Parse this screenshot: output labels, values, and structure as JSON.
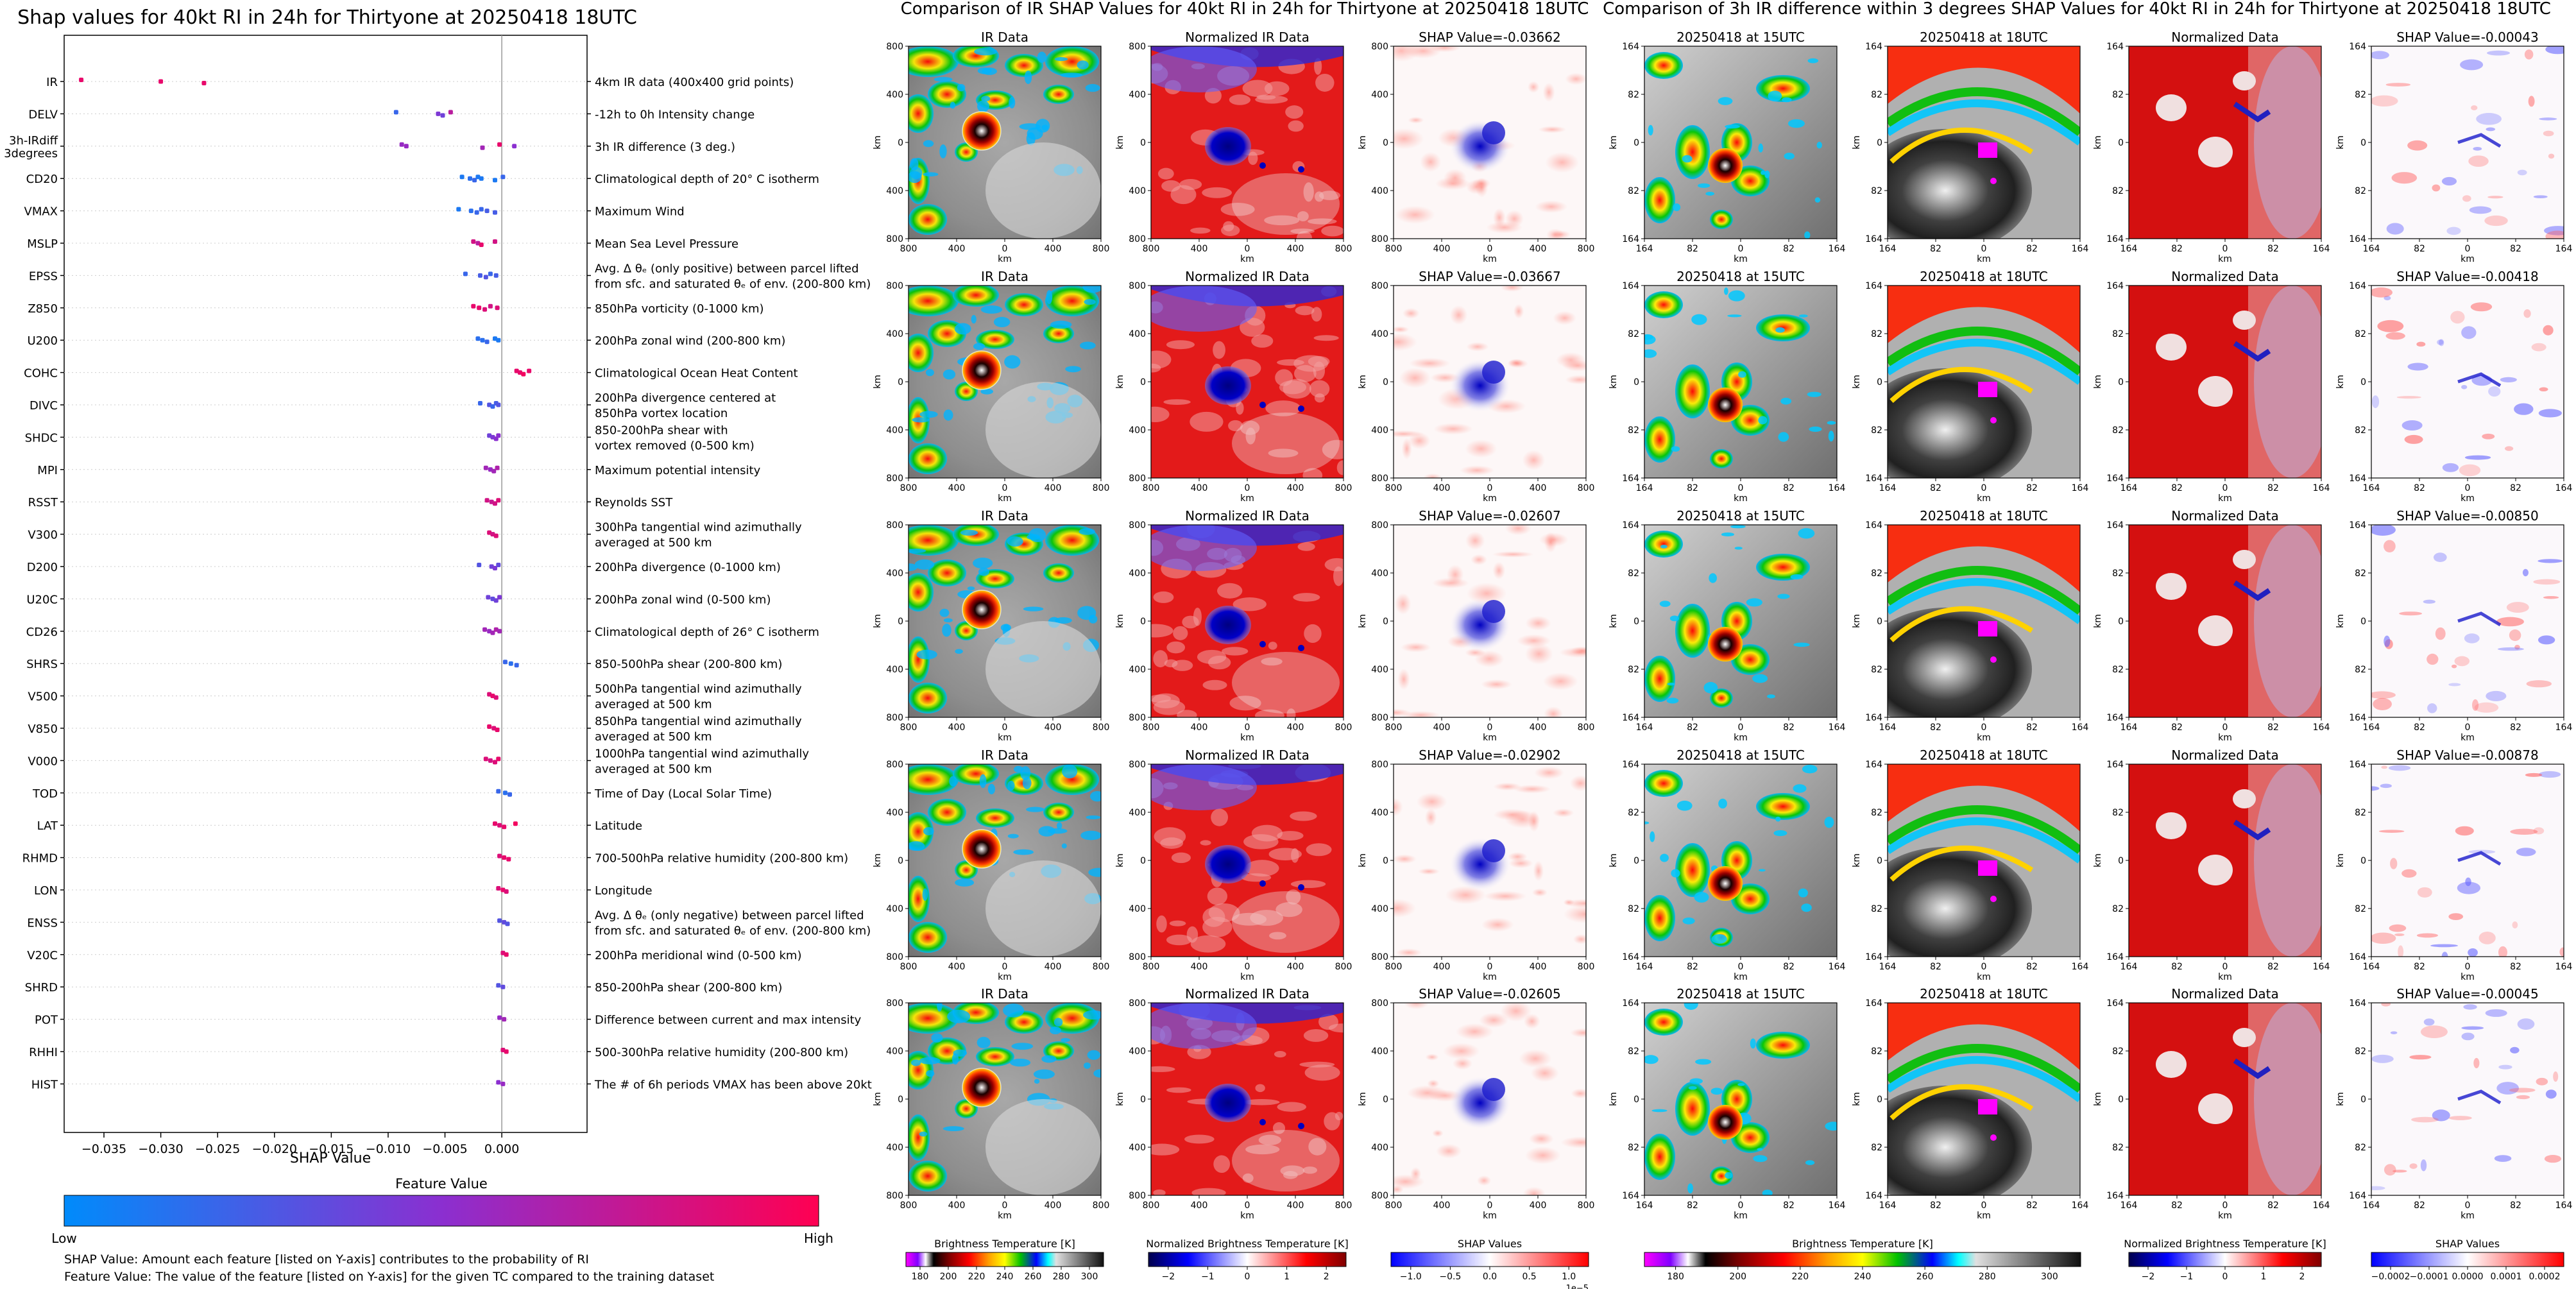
{
  "shap_summary": {
    "title": "Shap values for 40kt RI in 24h for Thirtyone at 20250418 18UTC",
    "xlabel": "SHAP Value",
    "xlim": [
      -0.0385,
      0.0075
    ],
    "xticks": [
      -0.035,
      -0.03,
      -0.025,
      -0.02,
      -0.015,
      -0.01,
      -0.005,
      0.0
    ],
    "xtick_labels": [
      "−0.035",
      "−0.030",
      "−0.025",
      "−0.020",
      "−0.015",
      "−0.010",
      "−0.005",
      "0.000"
    ],
    "colorbar": {
      "title": "Feature Value",
      "low": "Low",
      "high": "High",
      "low_color": "#008bfb",
      "high_color": "#ff0052"
    },
    "notes": [
      "SHAP Value: Amount each feature [listed on Y-axis] contributes to the probability of RI",
      "Feature Value: The value of the feature [listed on Y-axis] for the given TC compared to the training dataset"
    ],
    "features": [
      {
        "name": "IR",
        "desc": [
          "4km IR data (400x400 grid points)"
        ],
        "points": [
          [
            -0.037,
            0.9
          ],
          [
            -0.03,
            0.9
          ],
          [
            -0.0262,
            0.9
          ]
        ]
      },
      {
        "name": "DELV",
        "desc": [
          "-12h to 0h Intensity change"
        ],
        "points": [
          [
            -0.0093,
            0.2
          ],
          [
            -0.0056,
            0.45
          ],
          [
            -0.0052,
            0.4
          ],
          [
            -0.0045,
            0.7
          ]
        ]
      },
      {
        "name": "3h-IRdiff\n3degrees",
        "desc": [
          "3h IR difference (3 deg.)"
        ],
        "points": [
          [
            -0.0088,
            0.55
          ],
          [
            -0.0084,
            0.55
          ],
          [
            -0.0017,
            0.6
          ],
          [
            -0.0002,
            0.9
          ],
          [
            0.0011,
            0.5
          ]
        ]
      },
      {
        "name": "CD20",
        "desc": [
          "Climatological depth of 20° C isotherm"
        ],
        "points": [
          [
            -0.0035,
            0.1
          ],
          [
            -0.0028,
            0.15
          ],
          [
            -0.0024,
            0.2
          ],
          [
            -0.0021,
            0.1
          ],
          [
            -0.0018,
            0.1
          ],
          [
            -0.0006,
            0.1
          ],
          [
            0.0001,
            0.2
          ]
        ]
      },
      {
        "name": "VMAX",
        "desc": [
          "Maximum Wind"
        ],
        "points": [
          [
            -0.0038,
            0.1
          ],
          [
            -0.0027,
            0.15
          ],
          [
            -0.0022,
            0.2
          ],
          [
            -0.0018,
            0.2
          ],
          [
            -0.0013,
            0.25
          ],
          [
            -0.0006,
            0.25
          ]
        ]
      },
      {
        "name": "MSLP",
        "desc": [
          "Mean Sea Level Pressure"
        ],
        "points": [
          [
            -0.0025,
            0.8
          ],
          [
            -0.0021,
            0.7
          ],
          [
            -0.0018,
            0.9
          ],
          [
            -0.0006,
            0.8
          ]
        ]
      },
      {
        "name": "EPSS",
        "desc": [
          "Avg. Δ θₑ (only positive) between parcel lifted",
          "from sfc. and saturated θₑ of env. (200-800 km)"
        ],
        "points": [
          [
            -0.0032,
            0.2
          ],
          [
            -0.0019,
            0.25
          ],
          [
            -0.0014,
            0.3
          ],
          [
            -0.001,
            0.2
          ],
          [
            -0.0005,
            0.25
          ]
        ]
      },
      {
        "name": "Z850",
        "desc": [
          "850hPa vorticity (0-1000 km)"
        ],
        "points": [
          [
            -0.0025,
            0.9
          ],
          [
            -0.002,
            0.9
          ],
          [
            -0.0015,
            0.85
          ],
          [
            -0.001,
            0.8
          ],
          [
            -0.0004,
            0.85
          ]
        ]
      },
      {
        "name": "U200",
        "desc": [
          "200hPa zonal wind (200-800 km)"
        ],
        "points": [
          [
            -0.0021,
            0.15
          ],
          [
            -0.0017,
            0.15
          ],
          [
            -0.0013,
            0.2
          ],
          [
            -0.0006,
            0.1
          ],
          [
            -0.0003,
            0.1
          ]
        ]
      },
      {
        "name": "COHC",
        "desc": [
          "Climatological Ocean Heat Content"
        ],
        "points": [
          [
            0.0013,
            0.9
          ],
          [
            0.0016,
            0.9
          ],
          [
            0.0019,
            0.95
          ],
          [
            0.0024,
            0.9
          ]
        ]
      },
      {
        "name": "DIVC",
        "desc": [
          "200hPa divergence centered at",
          "850hPa vortex location"
        ],
        "points": [
          [
            -0.0019,
            0.2
          ],
          [
            -0.0011,
            0.3
          ],
          [
            -0.0008,
            0.2
          ],
          [
            -0.0005,
            0.25
          ],
          [
            -0.0003,
            0.3
          ]
        ]
      },
      {
        "name": "SHDC",
        "desc": [
          "850-200hPa shear with",
          "vortex removed (0-500 km)"
        ],
        "points": [
          [
            -0.0011,
            0.4
          ],
          [
            -0.0008,
            0.45
          ],
          [
            -0.0005,
            0.5
          ],
          [
            -0.0003,
            0.5
          ]
        ]
      },
      {
        "name": "MPI",
        "desc": [
          "Maximum potential intensity"
        ],
        "points": [
          [
            -0.0014,
            0.6
          ],
          [
            -0.001,
            0.55
          ],
          [
            -0.0007,
            0.6
          ],
          [
            -0.0004,
            0.65
          ]
        ]
      },
      {
        "name": "RSST",
        "desc": [
          "Reynolds SST"
        ],
        "points": [
          [
            -0.0013,
            0.8
          ],
          [
            -0.0009,
            0.75
          ],
          [
            -0.0006,
            0.8
          ],
          [
            -0.0003,
            0.85
          ]
        ]
      },
      {
        "name": "V300",
        "desc": [
          "300hPa tangential wind azimuthally",
          "averaged at 500 km"
        ],
        "points": [
          [
            -0.0011,
            0.85
          ],
          [
            -0.0008,
            0.8
          ],
          [
            -0.0005,
            0.85
          ]
        ]
      },
      {
        "name": "D200",
        "desc": [
          "200hPa divergence (0-1000 km)"
        ],
        "points": [
          [
            -0.002,
            0.3
          ],
          [
            -0.0009,
            0.4
          ],
          [
            -0.0006,
            0.45
          ],
          [
            -0.0003,
            0.35
          ]
        ]
      },
      {
        "name": "U20C",
        "desc": [
          "200hPa zonal wind (0-500 km)"
        ],
        "points": [
          [
            -0.0012,
            0.4
          ],
          [
            -0.0008,
            0.35
          ],
          [
            -0.0005,
            0.4
          ],
          [
            -0.0002,
            0.45
          ]
        ]
      },
      {
        "name": "CD26",
        "desc": [
          "Climatological depth of 26° C isotherm"
        ],
        "points": [
          [
            -0.0015,
            0.6
          ],
          [
            -0.0011,
            0.55
          ],
          [
            -0.0008,
            0.6
          ],
          [
            -0.0005,
            0.65
          ],
          [
            -0.0002,
            0.6
          ]
        ]
      },
      {
        "name": "SHRS",
        "desc": [
          "850-500hPa shear (200-800 km)"
        ],
        "points": [
          [
            0.0003,
            0.2
          ],
          [
            0.0008,
            0.15
          ],
          [
            0.0013,
            0.2
          ]
        ]
      },
      {
        "name": "V500",
        "desc": [
          "500hPa tangential wind azimuthally",
          "averaged at 500 km"
        ],
        "points": [
          [
            -0.0011,
            0.85
          ],
          [
            -0.0008,
            0.9
          ],
          [
            -0.0005,
            0.85
          ]
        ]
      },
      {
        "name": "V850",
        "desc": [
          "850hPa tangential wind azimuthally",
          "averaged at 500 km"
        ],
        "points": [
          [
            -0.0011,
            0.9
          ],
          [
            -0.0007,
            0.85
          ],
          [
            -0.0004,
            0.9
          ]
        ]
      },
      {
        "name": "V000",
        "desc": [
          "1000hPa tangential wind azimuthally",
          "averaged at 500 km"
        ],
        "points": [
          [
            -0.0014,
            0.85
          ],
          [
            -0.001,
            0.8
          ],
          [
            -0.0006,
            0.85
          ],
          [
            -0.0003,
            0.9
          ]
        ]
      },
      {
        "name": "TOD",
        "desc": [
          "Time of Day (Local Solar Time)"
        ],
        "points": [
          [
            -0.0003,
            0.2
          ],
          [
            0.0003,
            0.15
          ],
          [
            0.0007,
            0.2
          ]
        ]
      },
      {
        "name": "LAT",
        "desc": [
          "Latitude"
        ],
        "points": [
          [
            -0.0006,
            0.9
          ],
          [
            -0.0002,
            0.85
          ],
          [
            0.0002,
            0.9
          ],
          [
            0.0012,
            0.95
          ]
        ]
      },
      {
        "name": "RHMD",
        "desc": [
          "700-500hPa relative humidity (200-800 km)"
        ],
        "points": [
          [
            -0.0002,
            0.85
          ],
          [
            0.0002,
            0.9
          ],
          [
            0.0006,
            0.9
          ]
        ]
      },
      {
        "name": "LON",
        "desc": [
          "Longitude"
        ],
        "points": [
          [
            -0.0003,
            0.85
          ],
          [
            0.0001,
            0.9
          ],
          [
            0.0004,
            0.85
          ]
        ]
      },
      {
        "name": "ENSS",
        "desc": [
          "Avg. Δ θₑ (only negative) between parcel lifted",
          "from sfc. and saturated θₑ of env. (200-800 km)"
        ],
        "points": [
          [
            -0.0002,
            0.3
          ],
          [
            0.0002,
            0.35
          ],
          [
            0.0005,
            0.3
          ]
        ]
      },
      {
        "name": "V20C",
        "desc": [
          "200hPa meridional wind (0-500 km)"
        ],
        "points": [
          [
            0.0001,
            0.85
          ],
          [
            0.0004,
            0.9
          ]
        ]
      },
      {
        "name": "SHRD",
        "desc": [
          "850-200hPa shear (200-800 km)"
        ],
        "points": [
          [
            -0.0003,
            0.3
          ],
          [
            0.0001,
            0.35
          ]
        ]
      },
      {
        "name": "POT",
        "desc": [
          "Difference between current and max intensity"
        ],
        "points": [
          [
            -0.0002,
            0.55
          ],
          [
            0.0002,
            0.6
          ]
        ]
      },
      {
        "name": "RHHI",
        "desc": [
          "500-300hPa relative humidity (200-800 km)"
        ],
        "points": [
          [
            0.0001,
            0.85
          ],
          [
            0.0004,
            0.9
          ]
        ]
      },
      {
        "name": "HIST",
        "desc": [
          "The # of 6h periods VMAX has been above 20kt"
        ],
        "points": [
          [
            -0.0003,
            0.5
          ],
          [
            0.0001,
            0.55
          ]
        ]
      }
    ]
  },
  "shap_ir_section": {
    "title": "Comparison of IR SHAP Values for 40kt RI in 24h for Thirtyone at 20250418 18UTC",
    "col_titles": [
      "IR Data",
      "Normalized IR Data"
    ],
    "shap_values": [
      "SHAP Value=-0.03662",
      "SHAP Value=-0.03667",
      "SHAP Value=-0.02607",
      "SHAP Value=-0.02902",
      "SHAP Value=-0.02605"
    ],
    "axis_label": "km",
    "xticks": [
      "800",
      "400",
      "0",
      "400",
      "800"
    ],
    "yticks": [
      "800",
      "400",
      "0",
      "400",
      "800"
    ],
    "colorbars": [
      {
        "title": "Brightness Temperature [K]",
        "ticks": [
          "180",
          "200",
          "220",
          "240",
          "260",
          "280",
          "300"
        ]
      },
      {
        "title": "Normalized Brightness Temperature [K]",
        "ticks": [
          "−2",
          "−1",
          "0",
          "1",
          "2"
        ]
      },
      {
        "title": "SHAP Values",
        "ticks": [
          "−1.0",
          "−0.5",
          "0.0",
          "0.5",
          "1.0"
        ],
        "offset": "1e−5"
      }
    ]
  },
  "diff_section": {
    "title": "Comparison of 3h IR difference within 3 degrees SHAP Values for 40kt RI in 24h for Thirtyone at 20250418 18UTC",
    "col_titles": [
      "20250418 at 15UTC",
      "20250418 at 18UTC",
      "Normalized Data"
    ],
    "shap_values": [
      "SHAP Value=-0.00043",
      "SHAP Value=-0.00418",
      "SHAP Value=-0.00850",
      "SHAP Value=-0.00878",
      "SHAP Value=-0.00045"
    ],
    "axis_label": "km",
    "xticks": [
      "164",
      "82",
      "0",
      "82",
      "164"
    ],
    "yticks": [
      "164",
      "82",
      "0",
      "82",
      "164"
    ],
    "colorbars": [
      {
        "title": "Brightness Temperature [K]",
        "ticks": [
          "180",
          "200",
          "220",
          "240",
          "260",
          "280",
          "300"
        ]
      },
      {
        "title": "Normalized Brightness Temperature [K]",
        "ticks": [
          "−2",
          "−1",
          "0",
          "1",
          "2"
        ]
      },
      {
        "title": "SHAP Values",
        "ticks": [
          "−0.0002",
          "−0.0001",
          "0.0000",
          "0.0001",
          "0.0002"
        ]
      }
    ]
  },
  "colors": {
    "ir_bg": "#8c8c8c",
    "red": "#d40000",
    "blue": "#1a1acc",
    "cold": "#ff00ff"
  }
}
